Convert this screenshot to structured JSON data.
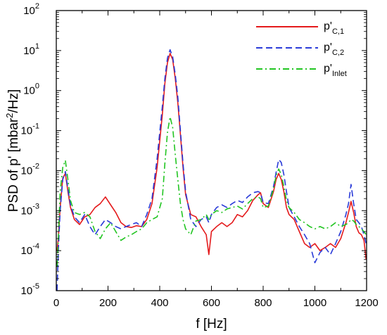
{
  "chart_data": {
    "type": "line",
    "xlabel": "f [Hz]",
    "ylabel": "PSD of p' [mbar²/Hz]",
    "ylabel_parts": {
      "pre": "PSD of p' [mbar",
      "sup": "2",
      "post": "/Hz]"
    },
    "xlim": [
      0,
      1200
    ],
    "ylim": [
      1e-05,
      100
    ],
    "yscale": "log",
    "x_ticks": [
      "0",
      "200",
      "400",
      "600",
      "800",
      "1000",
      "1200"
    ],
    "y_ticks": [
      {
        "base": "10",
        "exp": "-5"
      },
      {
        "base": "10",
        "exp": "-4"
      },
      {
        "base": "10",
        "exp": "-3"
      },
      {
        "base": "10",
        "exp": "-2"
      },
      {
        "base": "10",
        "exp": "-1"
      },
      {
        "base": "10",
        "exp": "0"
      },
      {
        "base": "10",
        "exp": "1"
      },
      {
        "base": "10",
        "exp": "2"
      }
    ],
    "grid": false,
    "legend_position": "top-right",
    "series": [
      {
        "name": "p'C,1",
        "label_main": "p'",
        "label_sub": "C,1",
        "color": "#e41a1c",
        "dash": "solid",
        "x": [
          3,
          8,
          15,
          25,
          35,
          45,
          55,
          70,
          90,
          110,
          130,
          150,
          170,
          190,
          210,
          230,
          250,
          270,
          290,
          310,
          330,
          350,
          370,
          390,
          410,
          420,
          430,
          440,
          450,
          460,
          470,
          480,
          490,
          500,
          520,
          540,
          560,
          580,
          590,
          600,
          620,
          640,
          660,
          680,
          700,
          720,
          740,
          760,
          780,
          790,
          800,
          820,
          840,
          850,
          860,
          870,
          880,
          890,
          900,
          920,
          940,
          960,
          980,
          1000,
          1020,
          1040,
          1060,
          1080,
          1100,
          1120,
          1130,
          1140,
          1150,
          1160,
          1170,
          1180,
          1190,
          1198
        ],
        "y": [
          0.0001,
          0.0002,
          0.0012,
          0.0065,
          0.0085,
          0.003,
          0.0012,
          0.0006,
          0.00045,
          0.0007,
          0.0008,
          0.0012,
          0.0015,
          0.0022,
          0.0014,
          0.0009,
          0.0005,
          0.0004,
          0.00038,
          0.00042,
          0.0004,
          0.0006,
          0.0015,
          0.012,
          0.25,
          1.5,
          5.0,
          8.5,
          6.0,
          2.0,
          0.5,
          0.08,
          0.012,
          0.0025,
          0.0008,
          0.0007,
          0.0004,
          0.00025,
          8e-05,
          0.0003,
          0.0004,
          0.0005,
          0.0004,
          0.0005,
          0.0008,
          0.0007,
          0.001,
          0.0018,
          0.0025,
          0.0028,
          0.0015,
          0.0012,
          0.003,
          0.006,
          0.0085,
          0.006,
          0.003,
          0.0012,
          0.0008,
          0.0006,
          0.0003,
          0.00015,
          0.00012,
          0.00015,
          0.0001,
          0.00012,
          0.00015,
          0.00012,
          0.0002,
          0.0005,
          0.0009,
          0.0017,
          0.0009,
          0.0004,
          0.00028,
          0.00025,
          0.00018,
          6e-05
        ]
      },
      {
        "name": "p'C,2",
        "label_main": "p'",
        "label_sub": "C,2",
        "color": "#2a3bd8",
        "dash": "dashed",
        "x": [
          3,
          8,
          15,
          25,
          35,
          45,
          55,
          70,
          90,
          110,
          130,
          150,
          170,
          190,
          210,
          230,
          250,
          270,
          290,
          310,
          330,
          350,
          370,
          390,
          410,
          420,
          430,
          440,
          450,
          460,
          470,
          480,
          490,
          500,
          520,
          540,
          560,
          580,
          590,
          600,
          620,
          640,
          660,
          680,
          700,
          720,
          740,
          760,
          780,
          790,
          800,
          820,
          840,
          850,
          860,
          870,
          880,
          890,
          900,
          920,
          940,
          960,
          980,
          1000,
          1020,
          1040,
          1060,
          1080,
          1100,
          1120,
          1130,
          1140,
          1150,
          1160,
          1170,
          1180,
          1190,
          1198
        ],
        "y": [
          1e-05,
          0.0001,
          0.001,
          0.006,
          0.0095,
          0.0035,
          0.0014,
          0.0007,
          0.0005,
          0.0008,
          0.0004,
          0.00025,
          0.0004,
          0.0006,
          0.0005,
          0.0004,
          0.00035,
          0.0004,
          0.00045,
          0.0005,
          0.0004,
          0.0008,
          0.002,
          0.02,
          0.4,
          2.0,
          6.5,
          10.5,
          7.0,
          2.5,
          0.7,
          0.1,
          0.015,
          0.003,
          0.0006,
          0.0004,
          0.0006,
          0.0007,
          0.0005,
          0.0008,
          0.0012,
          0.0014,
          0.0012,
          0.0015,
          0.0018,
          0.0016,
          0.0022,
          0.0028,
          0.003,
          0.0028,
          0.0016,
          0.0015,
          0.004,
          0.009,
          0.019,
          0.016,
          0.008,
          0.003,
          0.0012,
          0.0007,
          0.0004,
          0.00025,
          0.00015,
          5e-05,
          9e-05,
          0.00012,
          8e-05,
          0.00015,
          0.0003,
          0.0008,
          0.0015,
          0.0045,
          0.0015,
          0.0006,
          0.0005,
          0.0004,
          0.00025,
          0.00015
        ]
      },
      {
        "name": "p'Inlet",
        "label_main": "p'",
        "label_sub": "Inlet",
        "color": "#22c522",
        "dash": "dashdot",
        "x": [
          3,
          8,
          15,
          25,
          35,
          45,
          55,
          70,
          90,
          110,
          130,
          150,
          170,
          190,
          210,
          230,
          250,
          270,
          290,
          310,
          330,
          350,
          370,
          390,
          410,
          420,
          430,
          440,
          450,
          460,
          470,
          480,
          490,
          500,
          520,
          540,
          560,
          580,
          590,
          600,
          620,
          640,
          660,
          680,
          700,
          720,
          740,
          760,
          780,
          790,
          800,
          820,
          840,
          850,
          860,
          870,
          880,
          890,
          900,
          920,
          940,
          960,
          980,
          1000,
          1020,
          1040,
          1060,
          1080,
          1100,
          1120,
          1130,
          1140,
          1150,
          1160,
          1170,
          1180,
          1190,
          1198
        ],
        "y": [
          4e-05,
          0.0002,
          0.003,
          0.012,
          0.018,
          0.006,
          0.0018,
          0.0009,
          0.0008,
          0.0009,
          0.0007,
          0.0003,
          0.0002,
          0.00035,
          0.0005,
          0.0003,
          0.00018,
          0.00022,
          0.00025,
          0.0003,
          0.00035,
          0.0005,
          0.0006,
          0.0007,
          0.002,
          0.015,
          0.09,
          0.22,
          0.12,
          0.025,
          0.006,
          0.0015,
          0.0006,
          0.00035,
          0.00025,
          0.00055,
          0.0006,
          0.0008,
          0.0006,
          0.0008,
          0.001,
          0.0009,
          0.0011,
          0.0012,
          0.0013,
          0.0011,
          0.0015,
          0.002,
          0.0022,
          0.002,
          0.0012,
          0.0013,
          0.0035,
          0.0075,
          0.011,
          0.008,
          0.004,
          0.0018,
          0.0012,
          0.0009,
          0.0006,
          0.0005,
          0.0004,
          0.00035,
          0.0004,
          0.00035,
          0.0004,
          0.0005,
          0.0004,
          0.00045,
          0.0005,
          0.0006,
          0.00055,
          0.00045,
          0.0004,
          0.00035,
          0.0003,
          0.00025
        ]
      }
    ]
  }
}
